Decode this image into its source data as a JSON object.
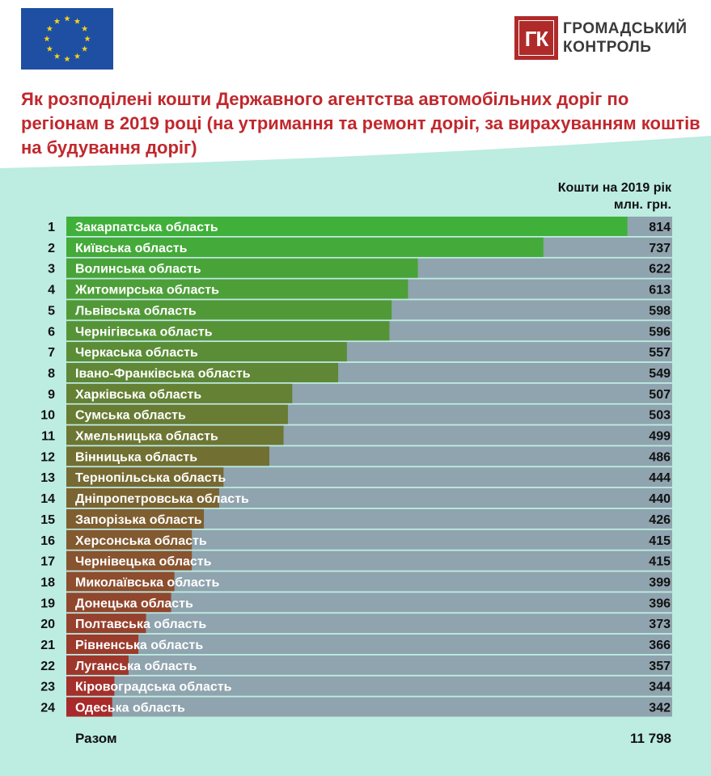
{
  "header": {
    "logo_box_text": "ГК",
    "logo_line1": "ГРОМАДСЬКИЙ",
    "logo_line2": "КОНТРОЛЬ",
    "title": "Як розподілені кошти Державного агентства автомобільних доріг по регіонам в 2019 році (на утримання та ремонт доріг, за вирахуванням коштів на будування доріг)"
  },
  "unit": {
    "line1": "Кошти на 2019 рік",
    "line2": "млн. грн."
  },
  "total": {
    "label": "Разом",
    "value": "11 798"
  },
  "colors": {
    "title": "#c0282d",
    "background_panel": "#bdece1",
    "track": "#8fa4ae",
    "bar_top": "#3fb03a",
    "bar_bottom": "#a82a2a"
  },
  "chart_data": {
    "type": "bar",
    "orientation": "horizontal",
    "ranks": [
      "1",
      "2",
      "3",
      "4",
      "5",
      "6",
      "7",
      "8",
      "9",
      "10",
      "11",
      "12",
      "13",
      "14",
      "15",
      "16",
      "17",
      "18",
      "19",
      "20",
      "21",
      "22",
      "23",
      "24"
    ],
    "categories": [
      "Закарпатська область",
      "Київська область",
      "Волинська область",
      "Житомирська область",
      "Львівська область",
      "Чернігівська область",
      "Черкаська область",
      "Івано-Франківська область",
      "Харківська область",
      "Сумська область",
      "Хмельницька область",
      "Вінницька область",
      "Тернопільська область",
      "Дніпропетровська область",
      "Запорізька область",
      "Херсонська область",
      "Чернівецька область",
      "Миколаївська область",
      "Донецька область",
      "Полтавська область",
      "Рівненська область",
      "Луганська область",
      "Кіровоградська область",
      "Одеська область"
    ],
    "values": [
      814,
      737,
      622,
      613,
      598,
      596,
      557,
      549,
      507,
      503,
      499,
      486,
      444,
      440,
      426,
      415,
      415,
      399,
      396,
      373,
      366,
      357,
      344,
      342
    ]
  }
}
